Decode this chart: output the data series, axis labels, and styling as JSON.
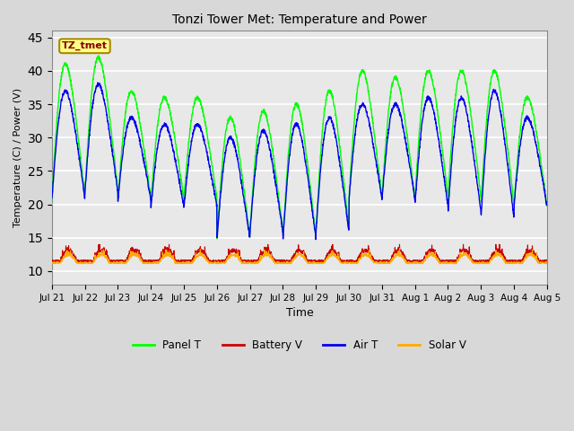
{
  "title": "Tonzi Tower Met: Temperature and Power",
  "xlabel": "Time",
  "ylabel": "Temperature (C) / Power (V)",
  "ylim": [
    8,
    46
  ],
  "yticks": [
    10,
    15,
    20,
    25,
    30,
    35,
    40,
    45
  ],
  "x_labels": [
    "Jul 21",
    "Jul 22",
    "Jul 23",
    "Jul 24",
    "Jul 25",
    "Jul 26",
    "Jul 27",
    "Jul 28",
    "Jul 29",
    "Jul 30",
    "Jul 31",
    "Aug 1",
    "Aug 2",
    "Aug 3",
    "Aug 4",
    "Aug 5"
  ],
  "annotation_text": "TZ_tmet",
  "bg_color": "#d8d8d8",
  "plot_bg_color": "#e8e8e8",
  "panel_T_color": "#00ff00",
  "battery_V_color": "#cc0000",
  "air_T_color": "#0000ee",
  "solar_V_color": "#ffaa00",
  "legend_labels": [
    "Panel T",
    "Battery V",
    "Air T",
    "Solar V"
  ],
  "n_days": 15,
  "day_peaks_panel": [
    41,
    42,
    37,
    36,
    36,
    33,
    34,
    35,
    37,
    40,
    39,
    40,
    40,
    40,
    36
  ],
  "day_peaks_air": [
    37,
    38,
    33,
    32,
    32,
    30,
    31,
    32,
    33,
    35,
    35,
    36,
    36,
    37,
    33
  ],
  "day_min_panel": [
    20,
    21,
    20,
    20,
    20,
    14,
    15,
    14,
    15,
    20,
    20,
    20,
    20,
    19,
    19
  ],
  "day_min_air": [
    20,
    21,
    20,
    19,
    19,
    14,
    15,
    14,
    15,
    20,
    20,
    19,
    18,
    17,
    19
  ]
}
